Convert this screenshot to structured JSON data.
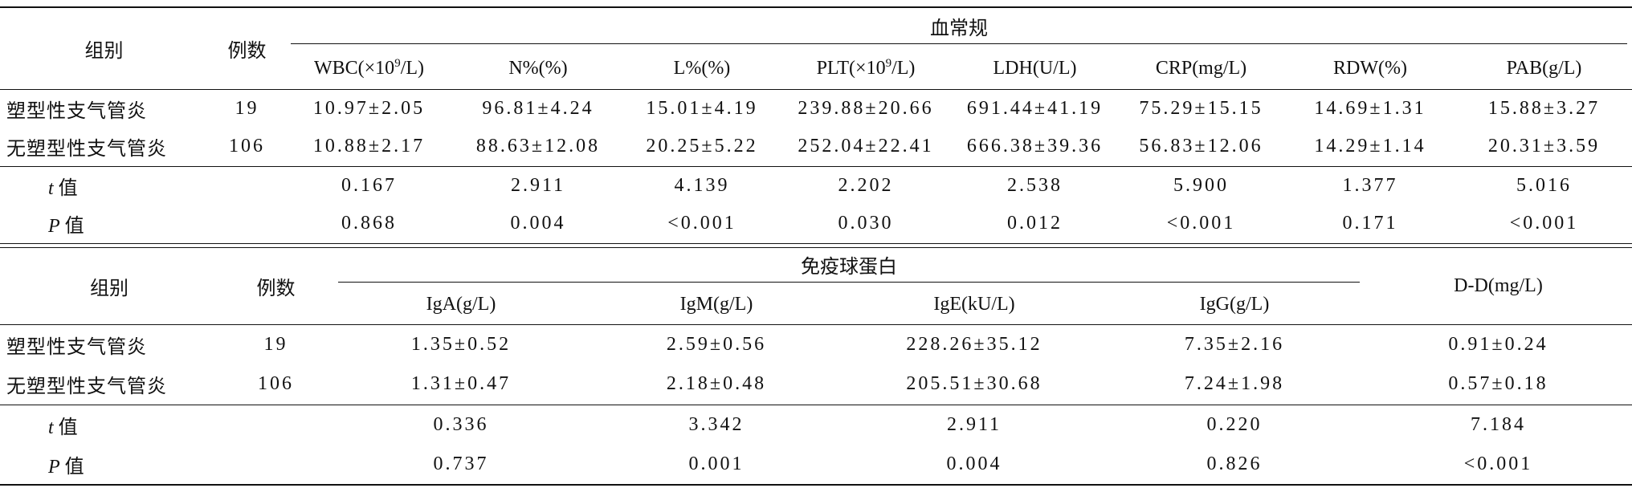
{
  "table1": {
    "group_header": "组别",
    "count_header": "例数",
    "span_header": "血常规",
    "columns": [
      {
        "pre": "WBC(×10",
        "sup": "9",
        "post": "/L)"
      },
      {
        "text": "N%(%)"
      },
      {
        "text": "L%(%)"
      },
      {
        "pre": "PLT(×10",
        "sup": "9",
        "post": "/L)"
      },
      {
        "text": "LDH(U/L)"
      },
      {
        "text": "CRP(mg/L)"
      },
      {
        "text": "RDW(%)"
      },
      {
        "text": "PAB(g/L)"
      }
    ],
    "rows": [
      {
        "label": "塑型性支气管炎",
        "count": 19,
        "values": [
          "10.97±2.05",
          "96.81±4.24",
          "15.01±4.19",
          "239.88±20.66",
          "691.44±41.19",
          "75.29±15.15",
          "14.69±1.31",
          "15.88±3.27"
        ]
      },
      {
        "label": "无塑型性支气管炎",
        "count": 106,
        "values": [
          "10.88±2.17",
          "88.63±12.08",
          "20.25±5.22",
          "252.04±22.41",
          "666.38±39.36",
          "56.83±12.06",
          "14.29±1.14",
          "20.31±3.59"
        ]
      }
    ],
    "stats": [
      {
        "symbol": "t",
        "label": "值",
        "values": [
          "0.167",
          "2.911",
          "4.139",
          "2.202",
          "2.538",
          "5.900",
          "1.377",
          "5.016"
        ]
      },
      {
        "symbol": "P",
        "label": "值",
        "values": [
          "0.868",
          "0.004",
          "<0.001",
          "0.030",
          "0.012",
          "<0.001",
          "0.171",
          "<0.001"
        ]
      }
    ]
  },
  "table2": {
    "group_header": "组别",
    "count_header": "例数",
    "span_header": "免疫球蛋白",
    "columns": [
      {
        "text": "IgA(g/L)"
      },
      {
        "text": "IgM(g/L)"
      },
      {
        "text": "IgE(kU/L)"
      },
      {
        "text": "IgG(g/L)"
      }
    ],
    "extra_header": "D-D(mg/L)",
    "rows": [
      {
        "label": "塑型性支气管炎",
        "count": 19,
        "values": [
          "1.35±0.52",
          "2.59±0.56",
          "228.26±35.12",
          "7.35±2.16",
          "0.91±0.24"
        ]
      },
      {
        "label": "无塑型性支气管炎",
        "count": 106,
        "values": [
          "1.31±0.47",
          "2.18±0.48",
          "205.51±30.68",
          "7.24±1.98",
          "0.57±0.18"
        ]
      }
    ],
    "stats": [
      {
        "symbol": "t",
        "label": "值",
        "values": [
          "0.336",
          "3.342",
          "2.911",
          "0.220",
          "7.184"
        ]
      },
      {
        "symbol": "P",
        "label": "值",
        "values": [
          "0.737",
          "0.001",
          "0.004",
          "0.826",
          "<0.001"
        ]
      }
    ]
  }
}
